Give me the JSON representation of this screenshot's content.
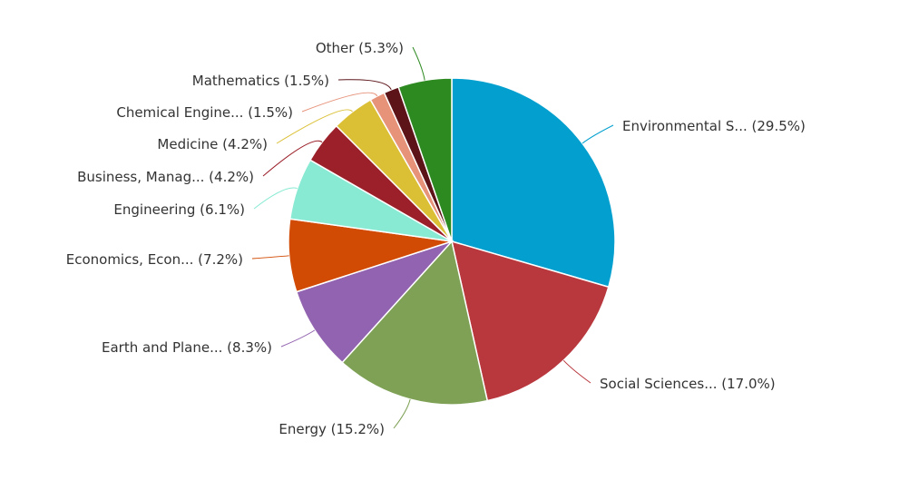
{
  "chart_data": {
    "type": "pie",
    "title": "",
    "slices": [
      {
        "label": "Environmental S... (29.5%)",
        "name": "Environmental S...",
        "value": 29.5,
        "color": "#03a0cf"
      },
      {
        "label": "Social Sciences... (17.0%)",
        "name": "Social Sciences...",
        "value": 17.0,
        "color": "#b8383e"
      },
      {
        "label": "Energy (15.2%)",
        "name": "Energy",
        "value": 15.2,
        "color": "#7ea155"
      },
      {
        "label": "Earth and Plane... (8.3%)",
        "name": "Earth and Plane...",
        "value": 8.3,
        "color": "#9263b0"
      },
      {
        "label": "Economics, Econ... (7.2%)",
        "name": "Economics, Econ...",
        "value": 7.2,
        "color": "#d24b04"
      },
      {
        "label": "Engineering (6.1%)",
        "name": "Engineering",
        "value": 6.1,
        "color": "#88ead3"
      },
      {
        "label": "Business, Manag... (4.2%)",
        "name": "Business, Manag...",
        "value": 4.2,
        "color": "#9b2029"
      },
      {
        "label": "Medicine (4.2%)",
        "name": "Medicine",
        "value": 4.2,
        "color": "#dbc036"
      },
      {
        "label": "Chemical Engine... (1.5%)",
        "name": "Chemical Engine...",
        "value": 1.5,
        "color": "#e6937a"
      },
      {
        "label": "Mathematics (1.5%)",
        "name": "Mathematics",
        "value": 1.5,
        "color": "#5c1419"
      },
      {
        "label": "Other (5.3%)",
        "name": "Other",
        "value": 5.3,
        "color": "#2d8a21"
      }
    ]
  }
}
